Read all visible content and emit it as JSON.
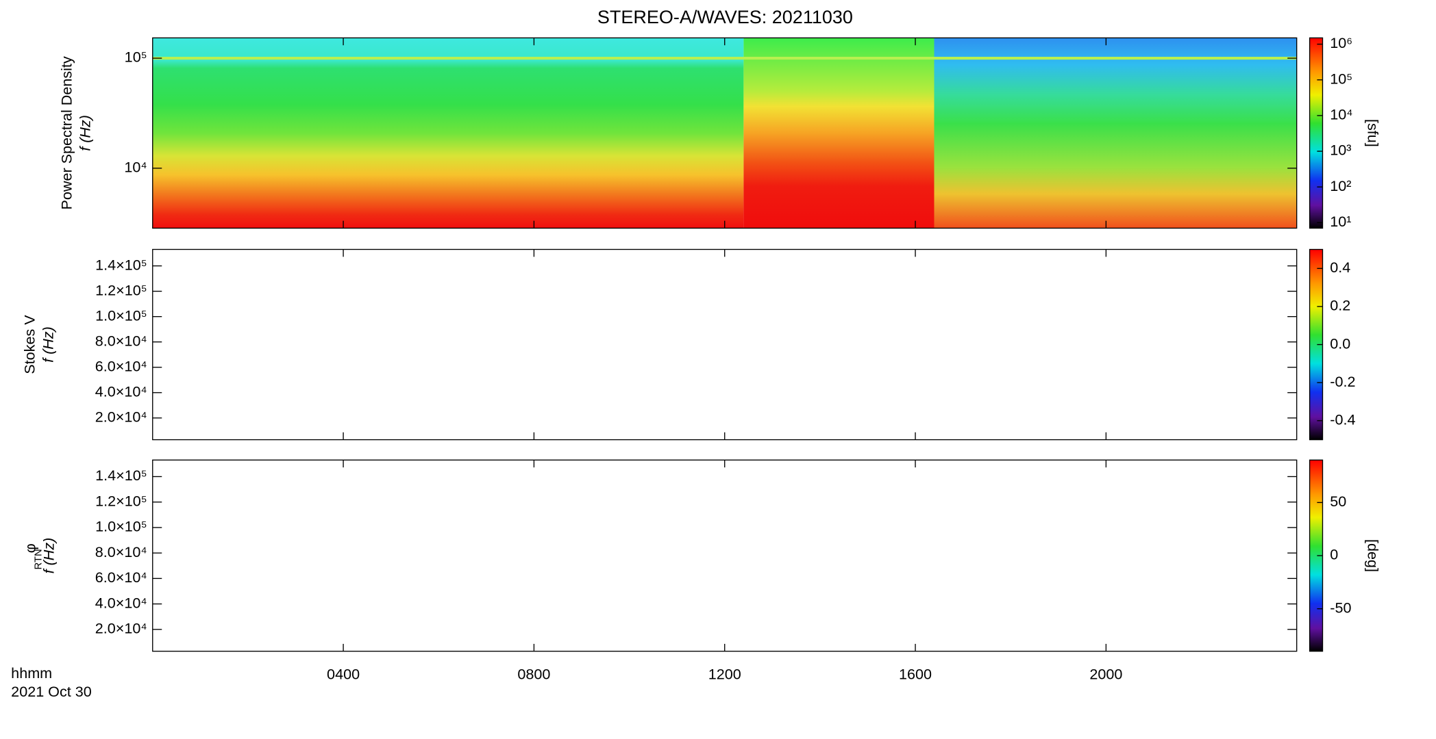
{
  "title": "STEREO-A/WAVES: 20211030",
  "time_axis": {
    "label": "hhmm",
    "date": "2021 Oct 30",
    "xlim": [
      0,
      24
    ],
    "xticks": [
      {
        "value": 4,
        "label": "0400"
      },
      {
        "value": 8,
        "label": "0800"
      },
      {
        "value": 12,
        "label": "1200"
      },
      {
        "value": 16,
        "label": "1600"
      },
      {
        "value": 20,
        "label": "2000"
      }
    ]
  },
  "chart_data": [
    {
      "type": "heatmap",
      "ylabel": [
        "Power Spectral Density",
        "f (Hz)"
      ],
      "log_y": true,
      "ylim": [
        2850,
        153000
      ],
      "yticks": [
        {
          "value": 10000,
          "label": "10⁴"
        },
        {
          "value": 100000,
          "label": "10⁵"
        }
      ],
      "colorbar": {
        "label": "[sfu]",
        "log": true,
        "lim": [
          7,
          1500000
        ],
        "ticks": [
          {
            "value": 10,
            "label": "10¹"
          },
          {
            "value": 100,
            "label": "10²"
          },
          {
            "value": 1000,
            "label": "10³"
          },
          {
            "value": 10000,
            "label": "10⁴"
          },
          {
            "value": 100000,
            "label": "10⁵"
          },
          {
            "value": 1000000,
            "label": "10⁶"
          }
        ]
      }
    },
    {
      "type": "heatmap",
      "ylabel": [
        "Stokes V",
        "f (Hz)"
      ],
      "log_y": false,
      "ylim": [
        2850,
        153000
      ],
      "yticks": [
        {
          "value": 20000,
          "label": "2.0×10⁴"
        },
        {
          "value": 40000,
          "label": "4.0×10⁴"
        },
        {
          "value": 60000,
          "label": "6.0×10⁴"
        },
        {
          "value": 80000,
          "label": "8.0×10⁴"
        },
        {
          "value": 100000,
          "label": "1.0×10⁵"
        },
        {
          "value": 120000,
          "label": "1.2×10⁵"
        },
        {
          "value": 140000,
          "label": "1.4×10⁵"
        }
      ],
      "colorbar": {
        "log": false,
        "lim": [
          -0.5,
          0.5
        ],
        "ticks": [
          -0.4,
          -0.2,
          {
            "value": 0,
            "label": "0.0"
          },
          0.2,
          0.4
        ]
      }
    },
    {
      "type": "heatmap",
      "ylabel": [
        "φ",
        "RTN",
        "f (Hz)"
      ],
      "log_y": false,
      "ylim": [
        2850,
        153000
      ],
      "yticks": [
        {
          "value": 20000,
          "label": "2.0×10⁴"
        },
        {
          "value": 40000,
          "label": "4.0×10⁴"
        },
        {
          "value": 60000,
          "label": "6.0×10⁴"
        },
        {
          "value": 80000,
          "label": "8.0×10⁴"
        },
        {
          "value": 100000,
          "label": "1.0×10⁵"
        },
        {
          "value": 120000,
          "label": "1.2×10⁵"
        },
        {
          "value": 140000,
          "label": "1.4×10⁵"
        }
      ],
      "colorbar": {
        "label": "[deg]",
        "log": false,
        "lim": [
          -90,
          90
        ],
        "ticks": [
          -50,
          0,
          50
        ]
      }
    }
  ]
}
